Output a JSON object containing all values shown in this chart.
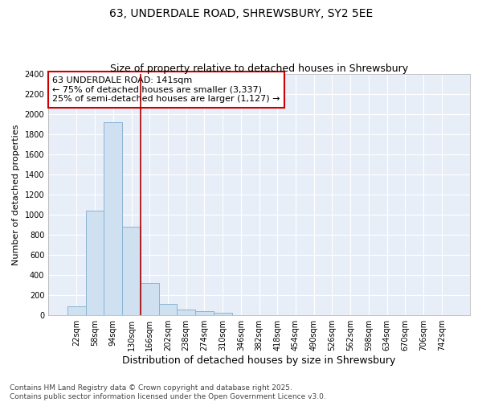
{
  "title_line1": "63, UNDERDALE ROAD, SHREWSBURY, SY2 5EE",
  "title_line2": "Size of property relative to detached houses in Shrewsbury",
  "xlabel": "Distribution of detached houses by size in Shrewsbury",
  "ylabel": "Number of detached properties",
  "categories": [
    "22sqm",
    "58sqm",
    "94sqm",
    "130sqm",
    "166sqm",
    "202sqm",
    "238sqm",
    "274sqm",
    "310sqm",
    "346sqm",
    "382sqm",
    "418sqm",
    "454sqm",
    "490sqm",
    "526sqm",
    "562sqm",
    "598sqm",
    "634sqm",
    "670sqm",
    "706sqm",
    "742sqm"
  ],
  "values": [
    90,
    1040,
    1920,
    880,
    320,
    115,
    55,
    40,
    25,
    0,
    0,
    0,
    0,
    0,
    0,
    0,
    0,
    0,
    0,
    0,
    0
  ],
  "bar_color": "#cfe0f0",
  "bar_edge_color": "#8ab4d4",
  "vline_color": "#aa0000",
  "annotation_text": "63 UNDERDALE ROAD: 141sqm\n← 75% of detached houses are smaller (3,337)\n25% of semi-detached houses are larger (1,127) →",
  "annotation_box_color": "#ffffff",
  "annotation_box_edge_color": "#cc0000",
  "ylim": [
    0,
    2400
  ],
  "yticks": [
    0,
    200,
    400,
    600,
    800,
    1000,
    1200,
    1400,
    1600,
    1800,
    2000,
    2200,
    2400
  ],
  "footnote": "Contains HM Land Registry data © Crown copyright and database right 2025.\nContains public sector information licensed under the Open Government Licence v3.0.",
  "fig_bg_color": "#ffffff",
  "plot_bg_color": "#e8eef8",
  "grid_color": "#ffffff",
  "title1_fontsize": 10,
  "title2_fontsize": 9,
  "xlabel_fontsize": 9,
  "ylabel_fontsize": 8,
  "tick_fontsize": 7,
  "annot_fontsize": 8,
  "footnote_fontsize": 6.5
}
